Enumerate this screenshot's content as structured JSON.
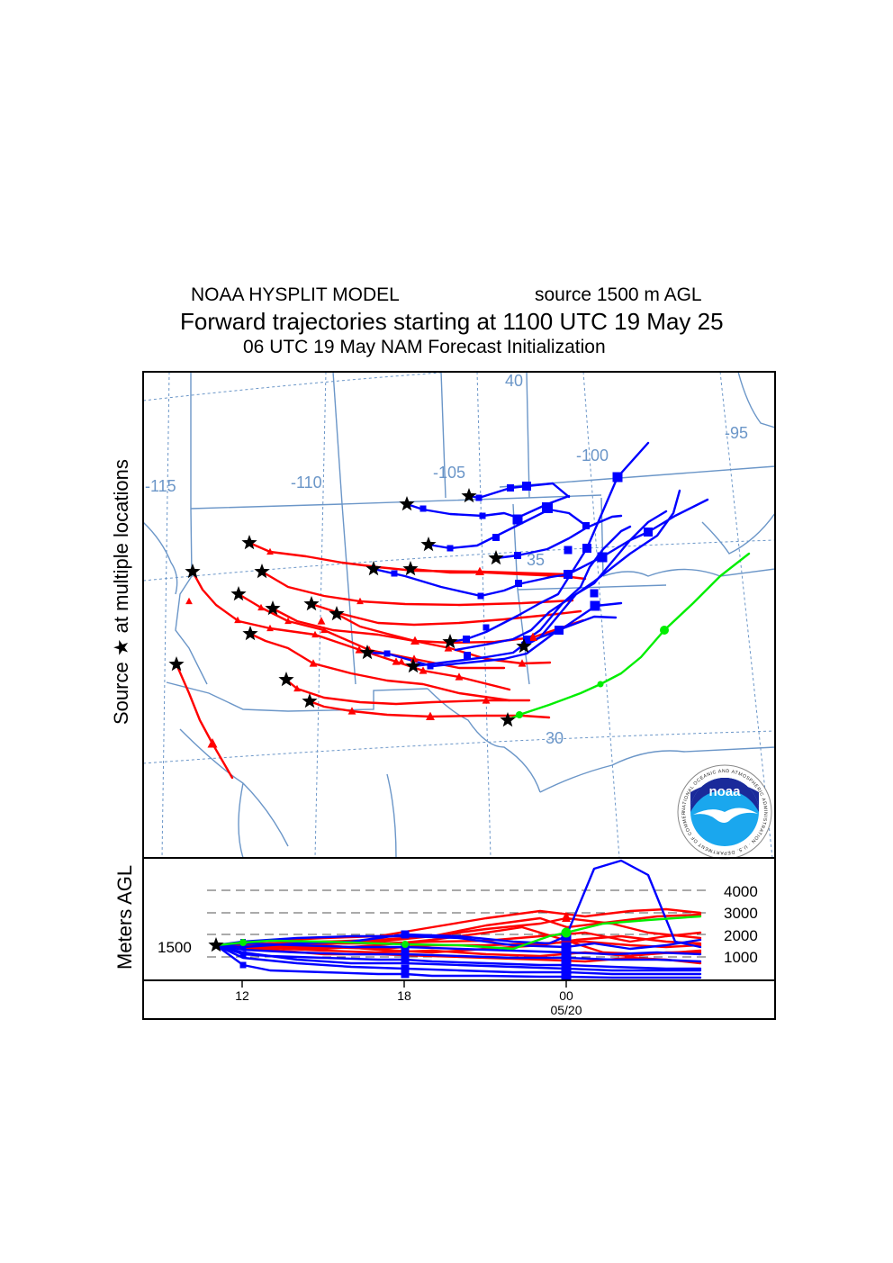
{
  "header": {
    "model": "NOAA HYSPLIT MODEL",
    "source_height": "source 1500 m AGL",
    "title": "Forward trajectories starting at 1100 UTC 19 May 25",
    "subtitle": "06 UTC 19 May    NAM   Forecast Initialization"
  },
  "map_panel": {
    "y_label": "Source ★   at multiple locations",
    "lon_labels": [
      "-115",
      "-110",
      "-105",
      "-100",
      "-95"
    ],
    "lat_labels": [
      "40",
      "35",
      "30"
    ]
  },
  "altitude_panel": {
    "y_label": "Meters AGL",
    "source_height_label": "1500",
    "height_ticks": [
      "4000",
      "3000",
      "2000",
      "1000"
    ],
    "time_ticks": [
      "12",
      "18",
      "00"
    ],
    "date_label": "05/20"
  },
  "logo": {
    "text": "noaa",
    "ring_text": "NATIONAL OCEANIC AND ATMOSPHERIC ADMINISTRATION · U.S. DEPARTMENT OF COMMERCE"
  },
  "colors": {
    "red_trajectory": "#ff0000",
    "blue_trajectory": "#0000ff",
    "green_trajectory": "#00ee00",
    "map_lines": "#6b96c8"
  }
}
